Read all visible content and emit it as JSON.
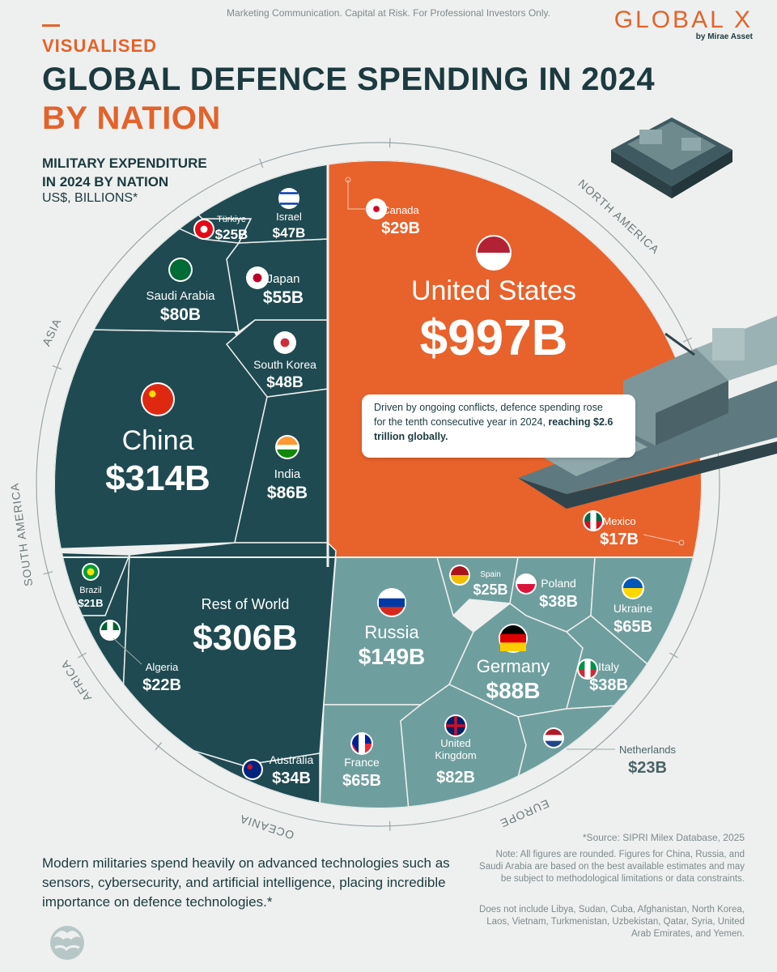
{
  "header": {
    "disclaimer": "Marketing Communication. Capital at Risk. For Professional Investors Only.",
    "brand": "GLOBAL X",
    "brand_sub": "by Mirae Asset",
    "kicker": "VISUALISED",
    "title": "GLOBAL DEFENCE SPENDING IN 2024",
    "title_highlight": "BY NATION",
    "subtitle_line1": "MILITARY EXPENDITURE",
    "subtitle_line2": "IN 2024 BY NATION",
    "units": "US$, BILLIONS*"
  },
  "callout": {
    "text_plain": "Driven by ongoing conflicts, defence spending rose for the tenth consecutive year in 2024,",
    "text_bold": "reaching $2.6 trillion globally."
  },
  "footnote": "Modern militaries spend heavily on advanced technologies such as sensors, cybersecurity, and artificial intelligence, placing incredible importance on defence technologies.*",
  "source": "*Source: SIPRI Milex Database, 2025",
  "note": "Note: All figures are rounded. Figures for China, Russia, and Saudi Arabia are based on the best available estimates and may be subject to methodological limitations or data constraints.",
  "exclusions": "Does not include Libya, Sudan, Cuba, Afghanistan, North Korea, Laos, Vietnam, Turkmenistan, Uzbekistan, Qatar, Syria, United Arab Emirates, and Yemen.",
  "colors": {
    "north_america": "#e8622b",
    "asia": "#1f4a51",
    "rest": "#1f4a51",
    "europe": "#6f9e9e",
    "background": "#eef0ef",
    "text_dark": "#1c3a3f",
    "accent": "#e3632b"
  },
  "chart_data": {
    "type": "voronoi treemap",
    "unit": "US$, billions",
    "regions": [
      {
        "name": "NORTH AMERICA",
        "countries": [
          {
            "name": "United States",
            "value": 997,
            "label": "$997B"
          },
          {
            "name": "Canada",
            "value": 29,
            "label": "$29B"
          },
          {
            "name": "Mexico",
            "value": 17,
            "label": "$17B"
          }
        ]
      },
      {
        "name": "ASIA",
        "countries": [
          {
            "name": "China",
            "value": 314,
            "label": "$314B"
          },
          {
            "name": "India",
            "value": 86,
            "label": "$86B"
          },
          {
            "name": "Saudi Arabia",
            "value": 80,
            "label": "$80B"
          },
          {
            "name": "Japan",
            "value": 55,
            "label": "$55B"
          },
          {
            "name": "South Korea",
            "value": 48,
            "label": "$48B"
          },
          {
            "name": "Israel",
            "value": 47,
            "label": "$47B"
          },
          {
            "name": "Türkiye",
            "value": 25,
            "label": "$25B"
          }
        ]
      },
      {
        "name": "SOUTH AMERICA",
        "countries": [
          {
            "name": "Brazil",
            "value": 21,
            "label": "$21B"
          }
        ]
      },
      {
        "name": "AFRICA",
        "countries": [
          {
            "name": "Algeria",
            "value": 22,
            "label": "$22B"
          }
        ]
      },
      {
        "name": "",
        "countries": [
          {
            "name": "Rest of World",
            "value": 306,
            "label": "$306B"
          }
        ]
      },
      {
        "name": "OCEANIA",
        "countries": [
          {
            "name": "Australia",
            "value": 34,
            "label": "$34B"
          }
        ]
      },
      {
        "name": "EUROPE",
        "countries": [
          {
            "name": "Russia",
            "value": 149,
            "label": "$149B"
          },
          {
            "name": "Germany",
            "value": 88,
            "label": "$88B"
          },
          {
            "name": "United Kingdom",
            "value": 82,
            "label": "$82B"
          },
          {
            "name": "France",
            "value": 65,
            "label": "$65B"
          },
          {
            "name": "Ukraine",
            "value": 65,
            "label": "$65B"
          },
          {
            "name": "Poland",
            "value": 38,
            "label": "$38B"
          },
          {
            "name": "Italy",
            "value": 38,
            "label": "$38B"
          },
          {
            "name": "Spain",
            "value": 25,
            "label": "$25B"
          },
          {
            "name": "Netherlands",
            "value": 23,
            "label": "$23B"
          }
        ]
      }
    ]
  }
}
